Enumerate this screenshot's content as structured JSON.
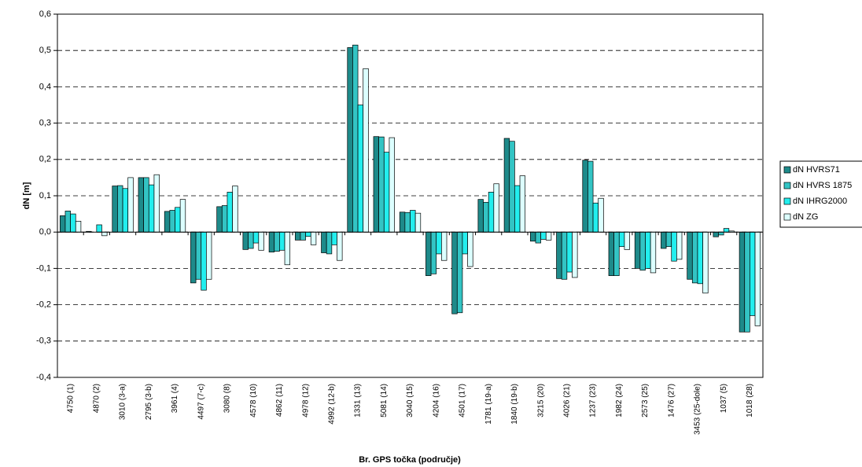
{
  "chart_data": {
    "type": "bar",
    "x_label": "Br. GPS točka (područje)",
    "y_label": "dN [m]",
    "categories": [
      "4750 (1)",
      "4870 (2)",
      "3010 (3-a)",
      "2795 (3-b)",
      "3961 (4)",
      "4497 (7-c)",
      "3080 (8)",
      "4578 (10)",
      "4862 (11)",
      "4978 (12)",
      "4992 (12-b)",
      "1331 (13)",
      "5081 (14)",
      "3040 (15)",
      "4204 (16)",
      "4501 (17)",
      "1781 (19-a)",
      "1840 (19-b)",
      "3215 (20)",
      "4026 (21)",
      "1237 (23)",
      "1982 (24)",
      "2573 (25)",
      "1476 (27)",
      "3453 (25-dole)",
      "1037 (5)",
      "1018 (28)"
    ],
    "series": [
      {
        "name": "dN HVRS71",
        "color": "#1e8a8a",
        "values": [
          0.045,
          0.002,
          0.127,
          0.15,
          0.057,
          -0.14,
          0.07,
          -0.048,
          -0.055,
          -0.022,
          -0.057,
          0.508,
          0.263,
          0.055,
          -0.12,
          -0.225,
          0.09,
          0.258,
          -0.025,
          -0.128,
          0.198,
          -0.12,
          -0.1,
          -0.045,
          -0.13,
          -0.013,
          -0.275
        ]
      },
      {
        "name": "dN HVRS 1875",
        "color": "#33c4c4",
        "values": [
          0.058,
          0.0,
          0.128,
          0.15,
          0.06,
          -0.13,
          0.073,
          -0.045,
          -0.053,
          -0.022,
          -0.06,
          0.515,
          0.262,
          0.054,
          -0.115,
          -0.222,
          0.082,
          0.25,
          -0.03,
          -0.13,
          0.195,
          -0.12,
          -0.105,
          -0.04,
          -0.14,
          -0.008,
          -0.275
        ]
      },
      {
        "name": "dN IHRG2000",
        "color": "#22eeee",
        "values": [
          0.05,
          0.02,
          0.12,
          0.13,
          0.068,
          -0.16,
          0.11,
          -0.03,
          -0.05,
          -0.012,
          -0.035,
          0.35,
          0.22,
          0.06,
          -0.06,
          -0.06,
          0.11,
          0.128,
          -0.02,
          -0.11,
          0.08,
          -0.04,
          -0.1,
          -0.08,
          -0.142,
          0.01,
          -0.23
        ]
      },
      {
        "name": "dN ZG",
        "color": "#dcffff",
        "values": [
          0.03,
          -0.01,
          0.15,
          0.158,
          0.09,
          -0.13,
          0.127,
          -0.05,
          -0.09,
          -0.035,
          -0.078,
          0.45,
          0.26,
          0.052,
          -0.078,
          -0.095,
          0.133,
          0.155,
          -0.022,
          -0.125,
          0.093,
          -0.048,
          -0.112,
          -0.075,
          -0.168,
          0.003,
          -0.258
        ]
      }
    ],
    "ylim": [
      -0.4,
      0.6
    ],
    "yticks": [
      {
        "value": -0.4,
        "label": "-0,4"
      },
      {
        "value": -0.3,
        "label": "-0,3"
      },
      {
        "value": -0.2,
        "label": "-0,2"
      },
      {
        "value": -0.1,
        "label": "-0,1"
      },
      {
        "value": 0,
        "label": "0,0"
      },
      {
        "value": 0.1,
        "label": "0,1"
      },
      {
        "value": 0.2,
        "label": "0,2"
      },
      {
        "value": 0.3,
        "label": "0,3"
      },
      {
        "value": 0.4,
        "label": "0,4"
      },
      {
        "value": 0.5,
        "label": "0,5"
      },
      {
        "value": 0.6,
        "label": "0,6"
      }
    ],
    "grid": true
  }
}
